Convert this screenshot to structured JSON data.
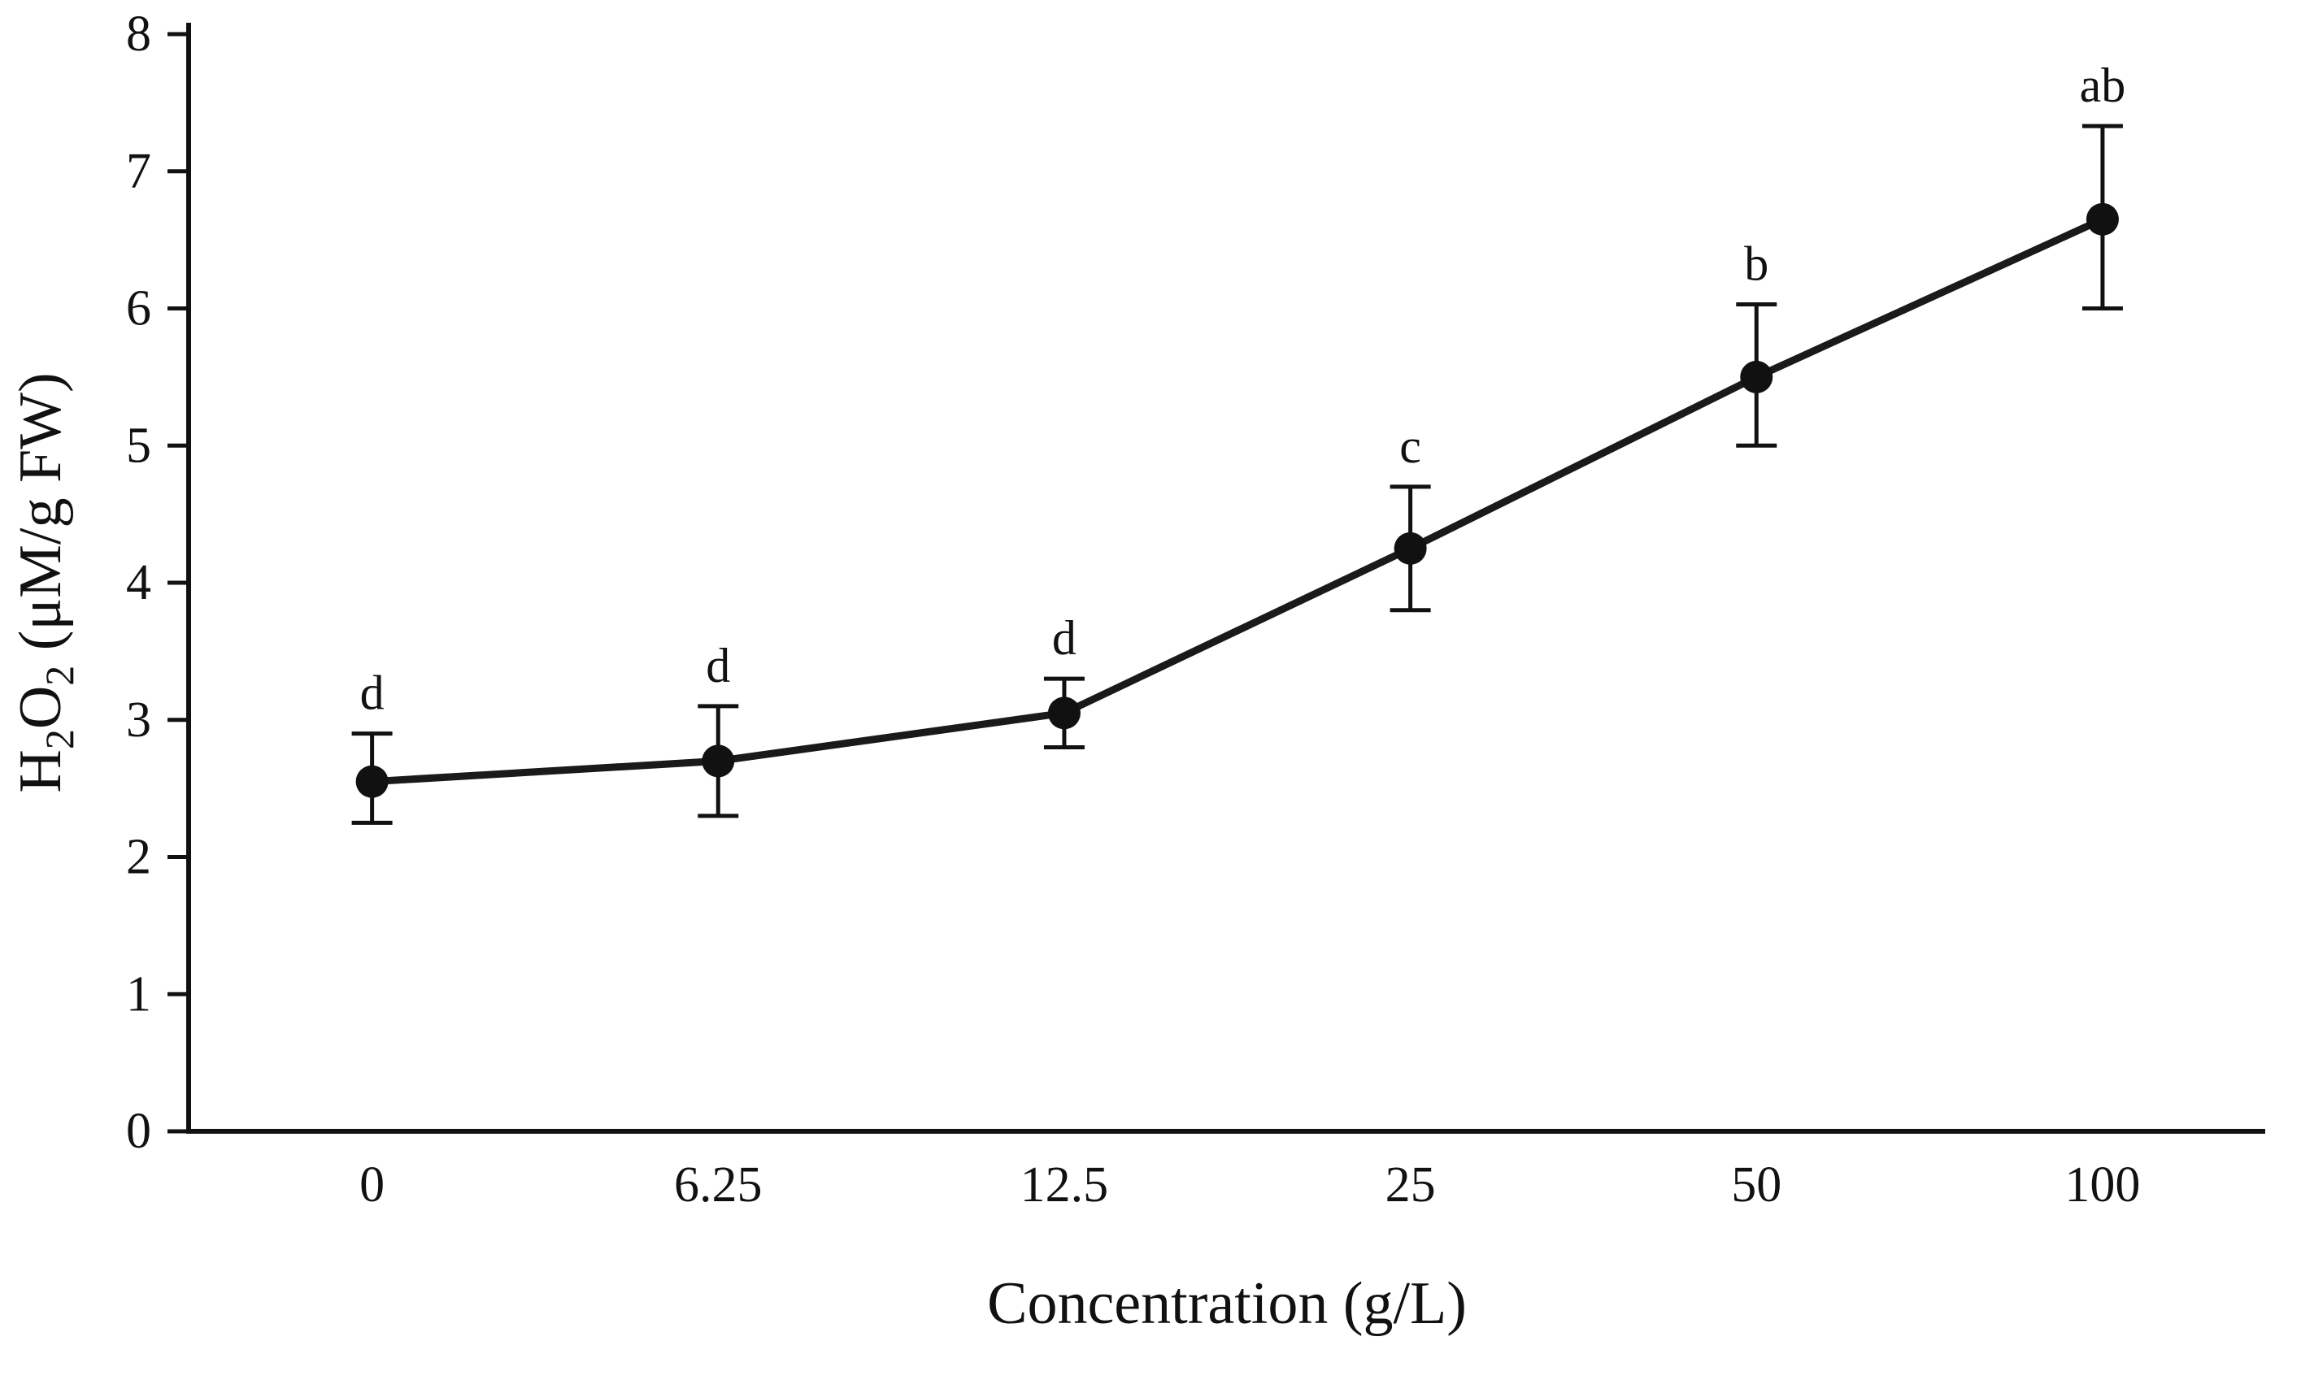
{
  "figure": {
    "description": "Line chart of H2O2 content versus concentration with error bars and significance letters"
  },
  "chart_data": {
    "type": "line",
    "title": "",
    "xlabel": "Concentration (g/L)",
    "ylabel": "H2O2 (μM/g FW)",
    "ylabel_parts": [
      {
        "text": "H",
        "sub": false
      },
      {
        "text": "2",
        "sub": true
      },
      {
        "text": "O",
        "sub": false
      },
      {
        "text": "2",
        "sub": true
      },
      {
        "text": " (μM/g FW)",
        "sub": false
      }
    ],
    "x_categories": [
      "0",
      "6.25",
      "12.5",
      "25",
      "50",
      "100"
    ],
    "y_ticks": [
      "0",
      "1",
      "2",
      "3",
      "4",
      "5",
      "6",
      "7",
      "8"
    ],
    "ylim": [
      0,
      8
    ],
    "grid": false,
    "legend": "none",
    "series": [
      {
        "name": "H2O2",
        "values": [
          2.55,
          2.7,
          3.05,
          4.25,
          5.5,
          6.65
        ],
        "error_upper": [
          0.35,
          0.4,
          0.25,
          0.45,
          0.53,
          0.68
        ],
        "error_lower": [
          0.3,
          0.4,
          0.25,
          0.45,
          0.5,
          0.65
        ],
        "point_labels": [
          "d",
          "d",
          "d",
          "c",
          "b",
          "ab"
        ],
        "marker": "circle",
        "line_color": "#1a1a1a",
        "marker_color": "#111111"
      }
    ],
    "ink_color": "#111111",
    "background_color": "#ffffff"
  }
}
